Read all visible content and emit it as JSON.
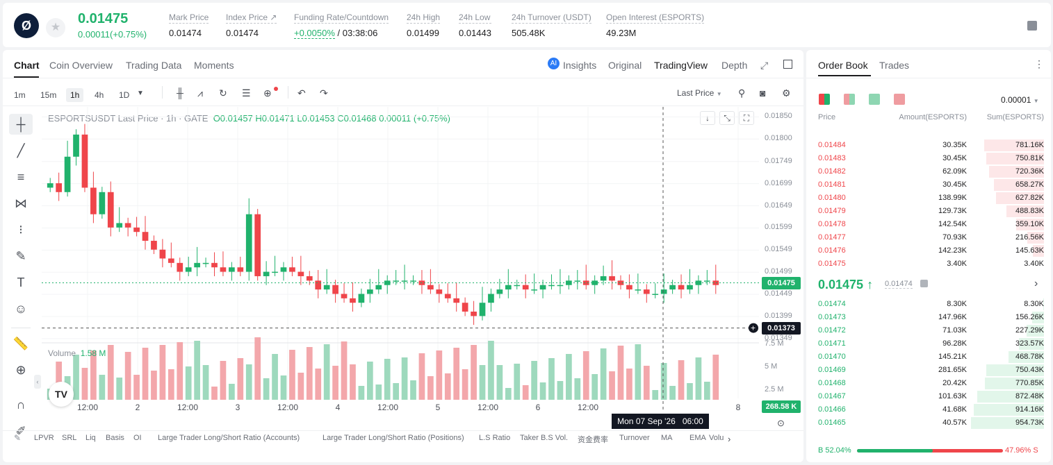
{
  "header": {
    "logo_glyph": "Ø",
    "price": "0.01475",
    "change": "0.00011(+0.75%)",
    "stats": [
      {
        "label": "Mark Price",
        "value": "0.01474"
      },
      {
        "label": "Index Price ↗",
        "value": "0.01474"
      },
      {
        "label": "Funding Rate/Countdown",
        "value": "+0.0050% / 03:38:06"
      },
      {
        "label": "24h High",
        "value": "0.01499"
      },
      {
        "label": "24h Low",
        "value": "0.01443"
      },
      {
        "label": "24h Turnover (USDT)",
        "value": "505.48K"
      },
      {
        "label": "Open Interest (ESPORTS)",
        "value": "49.23M"
      }
    ]
  },
  "chart_panel": {
    "tabs": [
      "Chart",
      "Coin Overview",
      "Trading Data",
      "Moments"
    ],
    "view_tabs": [
      "Insights",
      "Original",
      "TradingView",
      "Depth"
    ],
    "timeframes": [
      "1m",
      "15m",
      "1h",
      "4h",
      "1D"
    ],
    "last_price_selector": "Last Price",
    "symbol_line": "ESPORTSUSDT Last Price · 1h · GATE",
    "ohlc": "O0.01457 H0.01471 L0.01453 C0.01468 0.00011 (+0.75%)",
    "volume_label": "Volume",
    "volume_value": "1.58 M",
    "current_price_tag": "0.01475",
    "crosshair_price_tag": "0.01373",
    "volume_tag": "268.58 K",
    "crosshair_time": "Mon 07 Sep '26   06:00",
    "indicators": [
      "LPVR",
      "SRL",
      "Liq",
      "Basis",
      "OI",
      "Large Trader Long/Short Ratio (Accounts)",
      "Large Trader Long/Short Ratio (Positions)",
      "L.S Ratio",
      "Taker B.S Vol.",
      "资金费率",
      "Turnover",
      "MA",
      "EMA",
      "Volu"
    ]
  },
  "chart_data": {
    "type": "candlestick",
    "title": "ESPORTSUSDT Last Price · 1h · GATE",
    "y_ticks": [
      "0.01850",
      "0.01800",
      "0.01749",
      "0.01699",
      "0.01649",
      "0.01599",
      "0.01549",
      "0.01499",
      "0.01449",
      "0.01399",
      "0.01349"
    ],
    "ylim": [
      0.0133,
      0.0186
    ],
    "volume_ticks": [
      "7.5 M",
      "5 M",
      "2.5 M"
    ],
    "x_ticks": [
      "12:00",
      "2",
      "12:00",
      "3",
      "12:00",
      "4",
      "12:00",
      "5",
      "12:00",
      "6",
      "12:00",
      "8"
    ],
    "close_series": [
      0.017,
      0.0168,
      0.0176,
      0.0181,
      0.0169,
      0.0163,
      0.0168,
      0.016,
      0.0161,
      0.016,
      0.0159,
      0.0157,
      0.0155,
      0.0153,
      0.0152,
      0.015,
      0.0151,
      0.0152,
      0.0152,
      0.0151,
      0.015,
      0.0151,
      0.015,
      0.0163,
      0.0149,
      0.015,
      0.015,
      0.0151,
      0.015,
      0.0149,
      0.0148,
      0.0146,
      0.0147,
      0.0145,
      0.0144,
      0.0143,
      0.0145,
      0.0146,
      0.0147,
      0.0148,
      0.0148,
      0.0148,
      0.0148,
      0.0147,
      0.0146,
      0.0145,
      0.0144,
      0.0143,
      0.0141,
      0.014,
      0.0143,
      0.0145,
      0.0146,
      0.0147,
      0.0147,
      0.0146,
      0.0146,
      0.0147,
      0.0147,
      0.0147,
      0.0148,
      0.0148,
      0.0147,
      0.0148,
      0.0149,
      0.0148,
      0.0147,
      0.0146,
      0.0146,
      0.0145,
      0.0145,
      0.0146,
      0.0147,
      0.0146,
      0.0147,
      0.0148,
      0.0148,
      0.0147
    ]
  },
  "order_book": {
    "tabs": [
      "Order Book",
      "Trades"
    ],
    "precision": "0.00001",
    "columns": [
      "Price",
      "Amount(ESPORTS)",
      "Sum(ESPORTS)"
    ],
    "asks": [
      {
        "price": "0.01484",
        "amount": "30.35K",
        "sum": "781.16K",
        "depth": 0.82
      },
      {
        "price": "0.01483",
        "amount": "30.45K",
        "sum": "750.81K",
        "depth": 0.79
      },
      {
        "price": "0.01482",
        "amount": "62.09K",
        "sum": "720.36K",
        "depth": 0.75
      },
      {
        "price": "0.01481",
        "amount": "30.45K",
        "sum": "658.27K",
        "depth": 0.69
      },
      {
        "price": "0.01480",
        "amount": "138.99K",
        "sum": "627.82K",
        "depth": 0.66
      },
      {
        "price": "0.01479",
        "amount": "129.73K",
        "sum": "488.83K",
        "depth": 0.51
      },
      {
        "price": "0.01478",
        "amount": "142.54K",
        "sum": "359.10K",
        "depth": 0.38
      },
      {
        "price": "0.01477",
        "amount": "70.93K",
        "sum": "216.56K",
        "depth": 0.23
      },
      {
        "price": "0.01476",
        "amount": "142.23K",
        "sum": "145.63K",
        "depth": 0.15
      },
      {
        "price": "0.01475",
        "amount": "3.40K",
        "sum": "3.40K",
        "depth": 0.0
      }
    ],
    "last_price": "0.01475",
    "mark_price": "0.01474",
    "bids": [
      {
        "price": "0.01474",
        "amount": "8.30K",
        "sum": "8.30K",
        "depth": 0.01
      },
      {
        "price": "0.01473",
        "amount": "147.96K",
        "sum": "156.26K",
        "depth": 0.16
      },
      {
        "price": "0.01472",
        "amount": "71.03K",
        "sum": "227.29K",
        "depth": 0.24
      },
      {
        "price": "0.01471",
        "amount": "96.28K",
        "sum": "323.57K",
        "depth": 0.34
      },
      {
        "price": "0.01470",
        "amount": "145.21K",
        "sum": "468.78K",
        "depth": 0.49
      },
      {
        "price": "0.01469",
        "amount": "281.65K",
        "sum": "750.43K",
        "depth": 0.79
      },
      {
        "price": "0.01468",
        "amount": "20.42K",
        "sum": "770.85K",
        "depth": 0.81
      },
      {
        "price": "0.01467",
        "amount": "101.63K",
        "sum": "872.48K",
        "depth": 0.91
      },
      {
        "price": "0.01466",
        "amount": "41.68K",
        "sum": "914.16K",
        "depth": 0.96
      },
      {
        "price": "0.01465",
        "amount": "40.57K",
        "sum": "954.73K",
        "depth": 1.0
      }
    ],
    "buy_ratio": "B 52.04%",
    "sell_ratio": "47.96% S",
    "buy_fraction": 0.5204
  },
  "colors": {
    "up": "#20b26c",
    "down": "#ef454a"
  }
}
